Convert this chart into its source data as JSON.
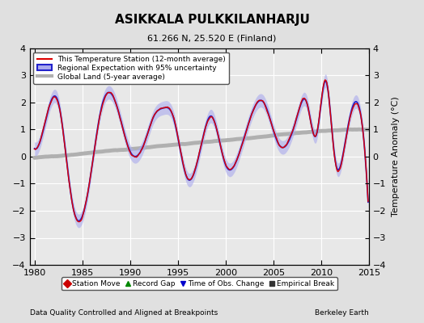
{
  "title": "ASIKKALA PULKKILANHARJU",
  "subtitle": "61.266 N, 25.520 E (Finland)",
  "ylabel": "Temperature Anomaly (°C)",
  "xlabel_left": "Data Quality Controlled and Aligned at Breakpoints",
  "xlabel_right": "Berkeley Earth",
  "ylim": [
    -4,
    4
  ],
  "xlim": [
    1979.5,
    2015
  ],
  "xticks": [
    1980,
    1985,
    1990,
    1995,
    2000,
    2005,
    2010,
    2015
  ],
  "yticks": [
    -4,
    -3,
    -2,
    -1,
    0,
    1,
    2,
    3,
    4
  ],
  "bg_color": "#e0e0e0",
  "plot_bg_color": "#e8e8e8",
  "station_color": "#dd0000",
  "regional_color": "#2222cc",
  "regional_band_color": "#aaaaee",
  "global_color": "#b0b0b0",
  "legend_entries": [
    {
      "label": "This Temperature Station (12-month average)"
    },
    {
      "label": "Regional Expectation with 95% uncertainty"
    },
    {
      "label": "Global Land (5-year average)"
    }
  ],
  "marker_legend": [
    {
      "label": "Station Move",
      "marker": "D",
      "color": "#cc0000"
    },
    {
      "label": "Record Gap",
      "marker": "^",
      "color": "#008800"
    },
    {
      "label": "Time of Obs. Change",
      "marker": "v",
      "color": "#0000cc"
    },
    {
      "label": "Empirical Break",
      "marker": "s",
      "color": "#333333"
    }
  ],
  "seed": 12345
}
